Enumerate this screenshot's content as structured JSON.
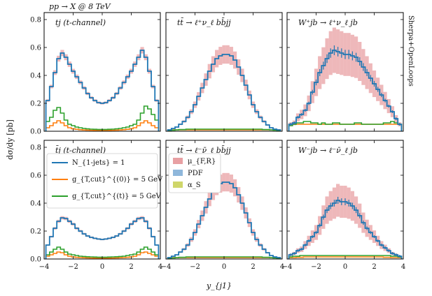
{
  "chart_data": {
    "type": "line",
    "header": "pp → X @ 8 TeV",
    "side_label": "Sherpa+OpenLoops",
    "xlabel": "y_{j1}",
    "ylabel": "dσ/dy [pb]",
    "xlim": [
      -4,
      4
    ],
    "ylim": [
      0,
      0.85
    ],
    "xticks": [
      "−4",
      "−2",
      "0",
      "2",
      "4"
    ],
    "yticks": [
      "0.0",
      "0.2",
      "0.4",
      "0.6",
      "0.8"
    ],
    "x_values": [
      -3.75,
      -3.5,
      -3.25,
      -3.0,
      -2.75,
      -2.5,
      -2.25,
      -2.0,
      -1.75,
      -1.5,
      -1.25,
      -1.0,
      -0.75,
      -0.5,
      -0.25,
      0.0,
      0.25,
      0.5,
      0.75,
      1.0,
      1.25,
      1.5,
      1.75,
      2.0,
      2.25,
      2.5,
      2.75,
      3.0,
      3.25,
      3.5,
      3.75
    ],
    "colors": {
      "main": "#1f77b4",
      "orange": "#ff7f0e",
      "green": "#2ca02c",
      "band_scale": "#e8a0a3",
      "band_pdf": "#8fb7db",
      "band_alphas": "#cfd66a"
    },
    "legend_lines": [
      {
        "label": "N_{1-jets} = 1",
        "color": "#1f77b4"
      },
      {
        "label": "g_{T,cut}^{(0)} = 5 GeV",
        "color": "#ff7f0e"
      },
      {
        "label": "g_{T,cut}^{(t)} = 5 GeV",
        "color": "#2ca02c"
      }
    ],
    "legend_bands": [
      {
        "label": "μ_{F,R}",
        "color": "#e8a0a3"
      },
      {
        "label": "PDF",
        "color": "#8fb7db"
      },
      {
        "label": "α_S",
        "color": "#cfd66a"
      }
    ],
    "panels": [
      {
        "label": "tj (t-channel)",
        "row": 0,
        "col": 0,
        "style": "line",
        "main": [
          0.22,
          0.32,
          0.42,
          0.52,
          0.56,
          0.53,
          0.48,
          0.43,
          0.39,
          0.35,
          0.31,
          0.27,
          0.24,
          0.22,
          0.205,
          0.2,
          0.205,
          0.22,
          0.24,
          0.27,
          0.31,
          0.35,
          0.39,
          0.43,
          0.48,
          0.53,
          0.58,
          0.53,
          0.43,
          0.32,
          0.22
        ],
        "orange": [
          0.025,
          0.04,
          0.06,
          0.075,
          0.06,
          0.04,
          0.025,
          0.018,
          0.014,
          0.011,
          0.009,
          0.008,
          0.007,
          0.006,
          0.006,
          0.006,
          0.006,
          0.006,
          0.007,
          0.008,
          0.009,
          0.011,
          0.014,
          0.018,
          0.025,
          0.04,
          0.06,
          0.075,
          0.06,
          0.04,
          0.025
        ],
        "green": [
          0.07,
          0.1,
          0.15,
          0.17,
          0.13,
          0.08,
          0.05,
          0.04,
          0.03,
          0.025,
          0.02,
          0.017,
          0.015,
          0.014,
          0.013,
          0.013,
          0.013,
          0.014,
          0.015,
          0.017,
          0.02,
          0.025,
          0.03,
          0.04,
          0.05,
          0.08,
          0.13,
          0.18,
          0.16,
          0.12,
          0.08
        ],
        "scale_rel": 0.04
      },
      {
        "label": "tt̄ → ℓ⁺ν_ℓ bb̄jj",
        "row": 0,
        "col": 1,
        "style": "line",
        "main": [
          0.01,
          0.02,
          0.03,
          0.05,
          0.07,
          0.1,
          0.14,
          0.19,
          0.25,
          0.31,
          0.37,
          0.43,
          0.48,
          0.52,
          0.54,
          0.55,
          0.55,
          0.54,
          0.51,
          0.46,
          0.4,
          0.33,
          0.26,
          0.19,
          0.14,
          0.1,
          0.07,
          0.045,
          0.025,
          0.015,
          0.01
        ],
        "orange": [
          0.01,
          0.01,
          0.01,
          0.01,
          0.01,
          0.01,
          0.01,
          0.01,
          0.01,
          0.01,
          0.01,
          0.01,
          0.01,
          0.01,
          0.01,
          0.01,
          0.01,
          0.01,
          0.01,
          0.01,
          0.01,
          0.01,
          0.01,
          0.01,
          0.01,
          0.01,
          0.01,
          0.01,
          0.01,
          0.01,
          0.01
        ],
        "green": [
          0.005,
          0.008,
          0.01,
          0.012,
          0.012,
          0.015,
          0.015,
          0.015,
          0.015,
          0.015,
          0.015,
          0.015,
          0.015,
          0.015,
          0.015,
          0.015,
          0.015,
          0.015,
          0.015,
          0.015,
          0.015,
          0.015,
          0.015,
          0.015,
          0.015,
          0.015,
          0.012,
          0.012,
          0.01,
          0.008,
          0.005
        ],
        "scale_rel": 0.12
      },
      {
        "label": "W⁺jb → ℓ⁺ν_ℓ jb",
        "row": 0,
        "col": 2,
        "style": "errorbar",
        "main": [
          0.05,
          0.06,
          0.1,
          0.12,
          0.15,
          0.2,
          0.28,
          0.35,
          0.42,
          0.47,
          0.52,
          0.56,
          0.58,
          0.57,
          0.56,
          0.55,
          0.55,
          0.54,
          0.53,
          0.5,
          0.46,
          0.42,
          0.38,
          0.34,
          0.3,
          0.26,
          0.22,
          0.18,
          0.14,
          0.09,
          0.05
        ],
        "orange": [
          0.05,
          0.05,
          0.05,
          0.05,
          0.05,
          0.05,
          0.05,
          0.05,
          0.05,
          0.05,
          0.05,
          0.05,
          0.05,
          0.05,
          0.05,
          0.05,
          0.05,
          0.05,
          0.05,
          0.05,
          0.05,
          0.05,
          0.05,
          0.05,
          0.05,
          0.05,
          0.05,
          0.05,
          0.05,
          0.05,
          0.05
        ],
        "green": [
          0.04,
          0.05,
          0.06,
          0.06,
          0.07,
          0.07,
          0.06,
          0.06,
          0.05,
          0.06,
          0.05,
          0.05,
          0.06,
          0.06,
          0.05,
          0.05,
          0.05,
          0.05,
          0.06,
          0.06,
          0.05,
          0.05,
          0.05,
          0.05,
          0.05,
          0.05,
          0.06,
          0.06,
          0.07,
          0.06,
          0.05
        ],
        "scale_rel": 0.28
      },
      {
        "label": "t̄j (t-channel)",
        "row": 1,
        "col": 0,
        "style": "line",
        "main": [
          0.1,
          0.16,
          0.22,
          0.27,
          0.295,
          0.29,
          0.27,
          0.25,
          0.22,
          0.2,
          0.18,
          0.165,
          0.155,
          0.148,
          0.143,
          0.14,
          0.143,
          0.148,
          0.155,
          0.165,
          0.18,
          0.2,
          0.22,
          0.25,
          0.27,
          0.29,
          0.295,
          0.27,
          0.22,
          0.16,
          0.1
        ],
        "orange": [
          0.02,
          0.03,
          0.04,
          0.05,
          0.045,
          0.03,
          0.02,
          0.015,
          0.012,
          0.01,
          0.009,
          0.008,
          0.007,
          0.006,
          0.006,
          0.006,
          0.006,
          0.006,
          0.007,
          0.008,
          0.009,
          0.01,
          0.012,
          0.015,
          0.02,
          0.03,
          0.045,
          0.05,
          0.04,
          0.03,
          0.02
        ],
        "green": [
          0.03,
          0.05,
          0.07,
          0.085,
          0.07,
          0.05,
          0.035,
          0.03,
          0.025,
          0.02,
          0.018,
          0.016,
          0.015,
          0.014,
          0.013,
          0.013,
          0.013,
          0.014,
          0.015,
          0.016,
          0.018,
          0.02,
          0.025,
          0.03,
          0.035,
          0.05,
          0.07,
          0.085,
          0.07,
          0.05,
          0.03
        ],
        "scale_rel": 0.04
      },
      {
        "label": "tt̄ → ℓ⁻ν̄_ℓ bb̄jj",
        "row": 1,
        "col": 1,
        "style": "line",
        "main": [
          0.01,
          0.02,
          0.03,
          0.05,
          0.07,
          0.1,
          0.14,
          0.19,
          0.25,
          0.31,
          0.37,
          0.43,
          0.48,
          0.52,
          0.54,
          0.55,
          0.55,
          0.54,
          0.51,
          0.46,
          0.4,
          0.33,
          0.26,
          0.19,
          0.14,
          0.1,
          0.07,
          0.045,
          0.025,
          0.015,
          0.01
        ],
        "orange": [
          0.01,
          0.01,
          0.01,
          0.01,
          0.01,
          0.01,
          0.01,
          0.01,
          0.01,
          0.01,
          0.01,
          0.01,
          0.01,
          0.01,
          0.01,
          0.01,
          0.01,
          0.01,
          0.01,
          0.01,
          0.01,
          0.01,
          0.01,
          0.01,
          0.01,
          0.01,
          0.01,
          0.01,
          0.01,
          0.01,
          0.01
        ],
        "green": [
          0.005,
          0.008,
          0.01,
          0.012,
          0.012,
          0.015,
          0.015,
          0.015,
          0.015,
          0.015,
          0.015,
          0.015,
          0.015,
          0.015,
          0.015,
          0.015,
          0.015,
          0.015,
          0.015,
          0.015,
          0.015,
          0.015,
          0.015,
          0.015,
          0.015,
          0.015,
          0.012,
          0.012,
          0.01,
          0.008,
          0.005
        ],
        "scale_rel": 0.12
      },
      {
        "label": "W⁻jb → ℓ⁻ν̄_ℓ jb",
        "row": 1,
        "col": 2,
        "style": "errorbar",
        "main": [
          0.03,
          0.04,
          0.06,
          0.07,
          0.1,
          0.13,
          0.16,
          0.19,
          0.24,
          0.3,
          0.35,
          0.38,
          0.4,
          0.42,
          0.41,
          0.41,
          0.4,
          0.38,
          0.35,
          0.31,
          0.26,
          0.22,
          0.19,
          0.16,
          0.13,
          0.1,
          0.08,
          0.06,
          0.04,
          0.03,
          0.02
        ],
        "orange": [
          0.01,
          0.01,
          0.012,
          0.012,
          0.015,
          0.015,
          0.015,
          0.015,
          0.015,
          0.015,
          0.015,
          0.015,
          0.015,
          0.015,
          0.015,
          0.015,
          0.015,
          0.015,
          0.015,
          0.015,
          0.015,
          0.015,
          0.015,
          0.015,
          0.015,
          0.015,
          0.012,
          0.012,
          0.01,
          0.01,
          0.01
        ],
        "green": [
          0.015,
          0.02,
          0.02,
          0.025,
          0.025,
          0.025,
          0.025,
          0.025,
          0.025,
          0.025,
          0.025,
          0.025,
          0.025,
          0.025,
          0.025,
          0.025,
          0.025,
          0.025,
          0.025,
          0.025,
          0.025,
          0.025,
          0.025,
          0.025,
          0.025,
          0.025,
          0.025,
          0.025,
          0.02,
          0.02,
          0.015
        ],
        "scale_rel": 0.28
      }
    ]
  }
}
